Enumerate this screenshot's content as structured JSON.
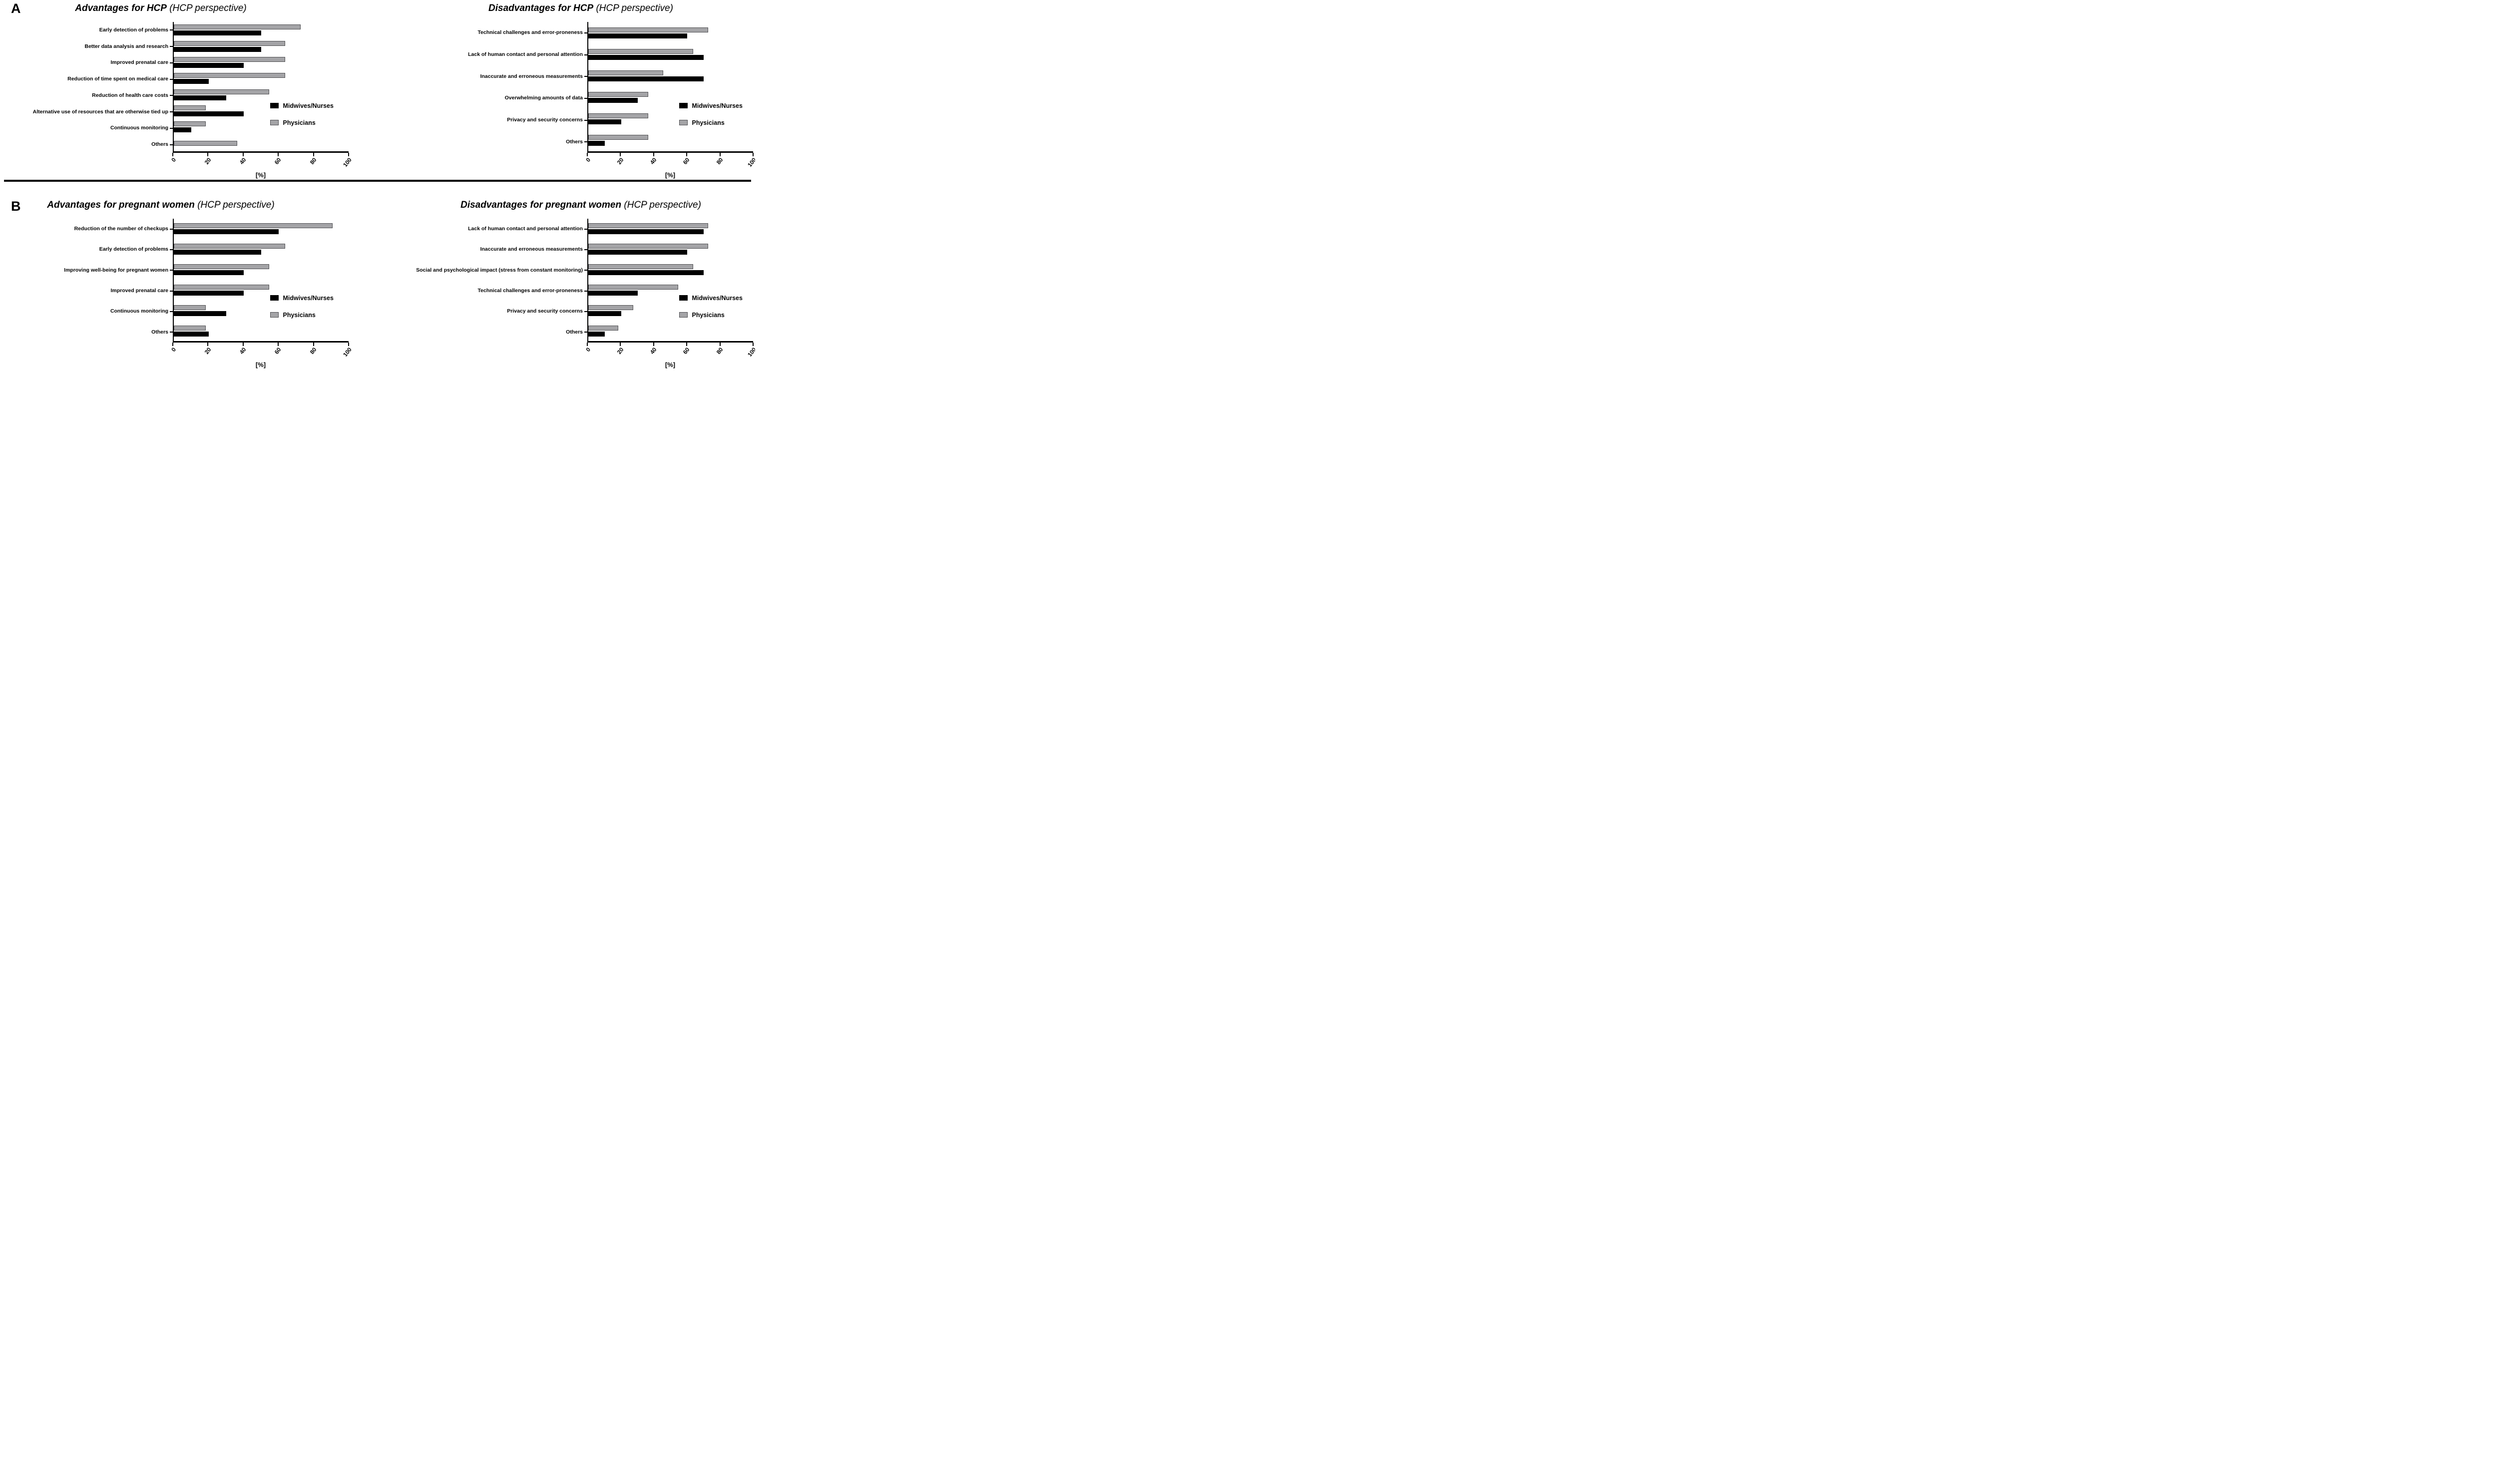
{
  "figure": {
    "panels": [
      {
        "label": "A"
      },
      {
        "label": "B"
      }
    ]
  },
  "colors": {
    "midwives_nurses": "#000000",
    "physicians": "#a4a4a7",
    "physicians_border": "#4f4f52",
    "axis": "#000000",
    "background": "#ffffff"
  },
  "chart_data": [
    {
      "id": "advantages-hcp",
      "type": "bar",
      "orientation": "horizontal",
      "panel": "A",
      "position": "left",
      "title": "Advantages for HCP",
      "subtitle": "(HCP perspective)",
      "xlabel": "[%]",
      "xlim": [
        0,
        100
      ],
      "xticks": [
        0,
        20,
        40,
        60,
        80,
        100
      ],
      "grid": false,
      "legend_position": "inside-right",
      "categories": [
        "Early detection of problems",
        "Better data analysis and research",
        "Improved prenatal care",
        "Reduction of time spent on medical care",
        "Reduction of health care costs",
        "Alternative use of resources that are otherwise tied up",
        "Continuous monitoring",
        "Others"
      ],
      "series": [
        {
          "name": "Midwives/Nurses",
          "color": "#000000",
          "values": [
            50,
            50,
            40,
            20,
            30,
            40,
            10,
            0
          ]
        },
        {
          "name": "Physicians",
          "color": "#a4a4a7",
          "values": [
            72.7,
            63.6,
            63.6,
            63.6,
            54.5,
            18.2,
            18.2,
            36.4
          ]
        }
      ]
    },
    {
      "id": "disadvantages-hcp",
      "type": "bar",
      "orientation": "horizontal",
      "panel": "A",
      "position": "right",
      "title": "Disadvantages for HCP",
      "subtitle": "(HCP perspective)",
      "xlabel": "[%]",
      "xlim": [
        0,
        100
      ],
      "xticks": [
        0,
        20,
        40,
        60,
        80,
        100
      ],
      "grid": false,
      "legend_position": "inside-right",
      "categories": [
        "Technical challenges and error-proneness",
        "Lack of human contact and personal attention",
        "Inaccurate and erroneous measurements",
        "Overwhelming amounts of data",
        "Privacy and security concerns",
        "Others"
      ],
      "series": [
        {
          "name": "Midwives/Nurses",
          "color": "#000000",
          "values": [
            60,
            70,
            70,
            30,
            20,
            10
          ]
        },
        {
          "name": "Physicians",
          "color": "#a4a4a7",
          "values": [
            72.7,
            63.6,
            45.5,
            36.4,
            36.4,
            36.4
          ]
        }
      ]
    },
    {
      "id": "advantages-pregnant-women",
      "type": "bar",
      "orientation": "horizontal",
      "panel": "B",
      "position": "left",
      "title": "Advantages for pregnant women",
      "subtitle": "(HCP perspective)",
      "xlabel": "[%]",
      "xlim": [
        0,
        100
      ],
      "xticks": [
        0,
        20,
        40,
        60,
        80,
        100
      ],
      "grid": false,
      "legend_position": "inside-right",
      "categories": [
        "Reduction of the number of checkups",
        "Early detection of problems",
        "Improving well-being for pregnant women",
        "Improved prenatal care",
        "Continuous monitoring",
        "Others"
      ],
      "series": [
        {
          "name": "Midwives/Nurses",
          "color": "#000000",
          "values": [
            60,
            50,
            40,
            40,
            30,
            20
          ]
        },
        {
          "name": "Physicians",
          "color": "#a4a4a7",
          "values": [
            90.9,
            63.6,
            54.5,
            54.5,
            18.2,
            18.2
          ]
        }
      ]
    },
    {
      "id": "disadvantages-pregnant-women",
      "type": "bar",
      "orientation": "horizontal",
      "panel": "B",
      "position": "right",
      "title": "Disadvantages for pregnant women",
      "subtitle": "(HCP perspective)",
      "xlabel": "[%]",
      "xlim": [
        0,
        100
      ],
      "xticks": [
        0,
        20,
        40,
        60,
        80,
        100
      ],
      "grid": false,
      "legend_position": "inside-right",
      "categories": [
        "Lack of human contact and personal attention",
        "Inaccurate and erroneous measurements",
        "Social and psychological impact (stress from constant monitoring)",
        "Technical challenges and error-proneness",
        "Privacy and security concerns",
        "Others"
      ],
      "series": [
        {
          "name": "Midwives/Nurses",
          "color": "#000000",
          "values": [
            70,
            60,
            70,
            30,
            20,
            10
          ]
        },
        {
          "name": "Physicians",
          "color": "#a4a4a7",
          "values": [
            72.7,
            72.7,
            63.6,
            54.5,
            27.3,
            18.2
          ]
        }
      ]
    }
  ]
}
